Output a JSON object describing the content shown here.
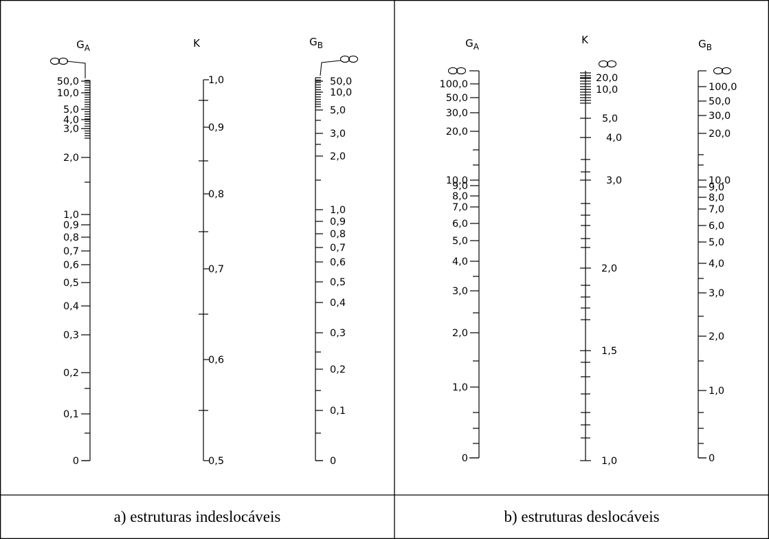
{
  "panel_a": {
    "caption": "a) estruturas indeslocáveis",
    "left_scale": {
      "title_main": "G",
      "title_sub": "A",
      "infinity_label": "∞",
      "labels": [
        {
          "text": "50,0",
          "value": "50,0"
        },
        {
          "text": "10,0",
          "value": "10,0"
        },
        {
          "text": "5,0",
          "value": "5,0"
        },
        {
          "text": "4,0",
          "value": "4,0"
        },
        {
          "text": "3,0",
          "value": "3,0"
        },
        {
          "text": "2,0",
          "value": "2,0"
        },
        {
          "text": "1,0",
          "value": "1,0"
        },
        {
          "text": "0,9",
          "value": "0,9"
        },
        {
          "text": "0,8",
          "value": "0,8"
        },
        {
          "text": "0,7",
          "value": "0,7"
        },
        {
          "text": "0,6",
          "value": "0,6"
        },
        {
          "text": "0,5",
          "value": "0,5"
        },
        {
          "text": "0,4",
          "value": "0,4"
        },
        {
          "text": "0,3",
          "value": "0,3"
        },
        {
          "text": "0,2",
          "value": "0,2"
        },
        {
          "text": "0,1",
          "value": "0,1"
        },
        {
          "text": "0",
          "value": "0"
        }
      ]
    },
    "middle_scale": {
      "title_main": "K",
      "labels": [
        {
          "text": "1,0",
          "value": "1,0"
        },
        {
          "text": "0,9",
          "value": "0,9"
        },
        {
          "text": "0,8",
          "value": "0,8"
        },
        {
          "text": "0,7",
          "value": "0,7"
        },
        {
          "text": "0,6",
          "value": "0,6"
        },
        {
          "text": "0,5",
          "value": "0,5"
        }
      ]
    },
    "right_scale": {
      "title_main": "G",
      "title_sub": "B",
      "infinity_label": "∞",
      "labels": [
        {
          "text": "50,0",
          "value": "50,0"
        },
        {
          "text": "10,0",
          "value": "10,0"
        },
        {
          "text": "5,0",
          "value": "5,0"
        },
        {
          "text": "3,0",
          "value": "3,0"
        },
        {
          "text": "2,0",
          "value": "2,0"
        },
        {
          "text": "1,0",
          "value": "1,0"
        },
        {
          "text": "0,9",
          "value": "0,9"
        },
        {
          "text": "0,8",
          "value": "0,8"
        },
        {
          "text": "0,7",
          "value": "0,7"
        },
        {
          "text": "0,6",
          "value": "0,6"
        },
        {
          "text": "0,5",
          "value": "0,5"
        },
        {
          "text": "0,4",
          "value": "0,4"
        },
        {
          "text": "0,3",
          "value": "0,3"
        },
        {
          "text": "0,2",
          "value": "0,2"
        },
        {
          "text": "0,1",
          "value": "0,1"
        },
        {
          "text": "0",
          "value": "0"
        }
      ]
    }
  },
  "panel_b": {
    "caption": "b) estruturas deslocáveis",
    "left_scale": {
      "title_main": "G",
      "title_sub": "A",
      "infinity_label": "∞",
      "labels": [
        {
          "text": "100,0",
          "value": "100,0"
        },
        {
          "text": "50,0",
          "value": "50,0"
        },
        {
          "text": "30,0",
          "value": "30,0"
        },
        {
          "text": "20,0",
          "value": "20,0"
        },
        {
          "text": "10,0",
          "value": "10,0"
        },
        {
          "text": "9,0",
          "value": "9,0"
        },
        {
          "text": "8,0",
          "value": "8,0"
        },
        {
          "text": "7,0",
          "value": "7,0"
        },
        {
          "text": "6,0",
          "value": "6,0"
        },
        {
          "text": "5,0",
          "value": "5,0"
        },
        {
          "text": "4,0",
          "value": "4,0"
        },
        {
          "text": "3,0",
          "value": "3,0"
        },
        {
          "text": "2,0",
          "value": "2,0"
        },
        {
          "text": "1,0",
          "value": "1,0"
        },
        {
          "text": "0",
          "value": "0"
        }
      ]
    },
    "middle_scale": {
      "title_main": "K",
      "infinity_label": "∞",
      "labels": [
        {
          "text": "20,0",
          "value": "20,0"
        },
        {
          "text": "10,0",
          "value": "10,0"
        },
        {
          "text": "5,0",
          "value": "5,0"
        },
        {
          "text": "4,0",
          "value": "4,0"
        },
        {
          "text": "3,0",
          "value": "3,0"
        },
        {
          "text": "2,0",
          "value": "2,0"
        },
        {
          "text": "1,5",
          "value": "1,5"
        },
        {
          "text": "1,0",
          "value": "1,0"
        }
      ]
    },
    "right_scale": {
      "title_main": "G",
      "title_sub": "B",
      "infinity_label": "∞",
      "labels": [
        {
          "text": "100,0",
          "value": "100,0"
        },
        {
          "text": "50,0",
          "value": "50,0"
        },
        {
          "text": "30,0",
          "value": "30,0"
        },
        {
          "text": "20,0",
          "value": "20,0"
        },
        {
          "text": "10,0",
          "value": "10,0"
        },
        {
          "text": "9,0",
          "value": "9,0"
        },
        {
          "text": "8,0",
          "value": "8,0"
        },
        {
          "text": "7,0",
          "value": "7,0"
        },
        {
          "text": "6,0",
          "value": "6,0"
        },
        {
          "text": "5,0",
          "value": "5,0"
        },
        {
          "text": "4,0",
          "value": "4,0"
        },
        {
          "text": "3,0",
          "value": "3,0"
        },
        {
          "text": "2,0",
          "value": "2,0"
        },
        {
          "text": "1,0",
          "value": "1,0"
        },
        {
          "text": "0",
          "value": "0"
        }
      ]
    }
  }
}
